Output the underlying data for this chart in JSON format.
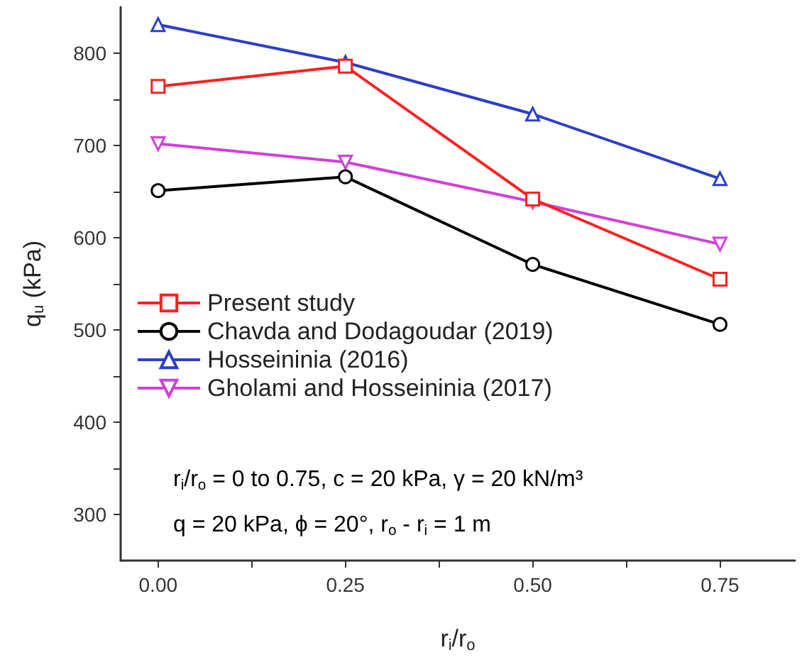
{
  "chart_data": {
    "type": "line",
    "xlabel": "r$_{i}$/r$_{o}$",
    "ylabel": "q$_{u}$ (kPa)",
    "x": [
      0,
      0.25,
      0.5,
      0.75
    ],
    "xlim": [
      -0.05,
      0.85
    ],
    "ylim": [
      250,
      850
    ],
    "xticks": [
      {
        "value": 0,
        "label": "0.00"
      },
      {
        "value": 0.125,
        "label": null
      },
      {
        "value": 0.25,
        "label": "0.25"
      },
      {
        "value": 0.375,
        "label": null
      },
      {
        "value": 0.5,
        "label": "0.50"
      },
      {
        "value": 0.625,
        "label": null
      },
      {
        "value": 0.75,
        "label": "0.75"
      }
    ],
    "yticks": [
      300,
      {
        "value": 350,
        "label": null
      },
      400,
      {
        "value": 450,
        "label": null
      },
      500,
      {
        "value": 550,
        "label": null
      },
      600,
      {
        "value": 650,
        "label": null
      },
      700,
      {
        "value": 750,
        "label": null
      },
      800
    ],
    "series": [
      {
        "name": "Present study",
        "color": "#ff2020",
        "marker": "square",
        "values": [
          764,
          786,
          642,
          555
        ]
      },
      {
        "name": "Chavda and Dodagoudar (2019)",
        "color": "#000000",
        "marker": "circle",
        "values": [
          651,
          666,
          571,
          506
        ]
      },
      {
        "name": "Hosseininia (2016)",
        "color": "#2a3fc8",
        "marker": "triangle",
        "values": [
          831,
          790,
          734,
          664
        ]
      },
      {
        "name": "Gholami and Hosseininia (2017)",
        "color": "#d040d8",
        "marker": "triangle-down",
        "values": [
          702,
          682,
          639,
          593
        ]
      }
    ],
    "annotations": [
      "r$_{i}$/r$_{o}$ = 0 to 0.75, c = 20 kPa, γ = 20 kN/m³",
      "q = 20 kPa, ϕ = 20°, r$_{o}$ - r$_{i}$ = 1 m"
    ],
    "legend": "center left",
    "grid": false,
    "line_style": "solid"
  }
}
